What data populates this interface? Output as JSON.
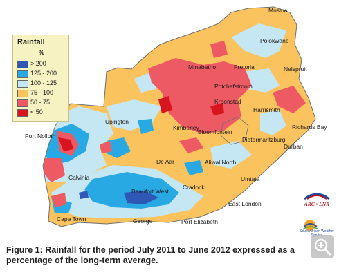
{
  "legend": {
    "title": "Rainfall",
    "unit": "%",
    "items": [
      {
        "label": "> 200",
        "color": "#2f57b5"
      },
      {
        "label": "125 - 200",
        "color": "#29a9e3"
      },
      {
        "label": "100 - 125",
        "color": "#c5e6f3"
      },
      {
        "label": "75 - 100",
        "color": "#fbc35e"
      },
      {
        "label": "50 - 75",
        "color": "#ee5a63"
      },
      {
        "label": "< 50",
        "color": "#d8141e"
      }
    ]
  },
  "cities": [
    {
      "name": "Musina"
    },
    {
      "name": "Polokwane"
    },
    {
      "name": "Mmabatho"
    },
    {
      "name": "Pretoria"
    },
    {
      "name": "Nelspruit"
    },
    {
      "name": "Potchefstroom"
    },
    {
      "name": "Kroonstad"
    },
    {
      "name": "Harrismith"
    },
    {
      "name": "Upington"
    },
    {
      "name": "Kimberley"
    },
    {
      "name": "Bloemfontein"
    },
    {
      "name": "Richards Bay"
    },
    {
      "name": "Pietermaritzburg"
    },
    {
      "name": "Port Nolloth"
    },
    {
      "name": "Durban"
    },
    {
      "name": "De Aar"
    },
    {
      "name": "Aliwal North"
    },
    {
      "name": "Calvinia"
    },
    {
      "name": "Umtata"
    },
    {
      "name": "Cradock"
    },
    {
      "name": "Beaufort West"
    },
    {
      "name": "East London"
    },
    {
      "name": "Cape Town"
    },
    {
      "name": "George"
    },
    {
      "name": "Port Elizabeth"
    }
  ],
  "logos": {
    "arc": "ARC • LNR",
    "saws": "South African Weather Service"
  },
  "caption": "Figure 1: Rainfall for the period July 2011 to June 2012 expressed as a percentage of the long-term average.",
  "icons": {
    "zoom": "zoom-plus-icon"
  }
}
